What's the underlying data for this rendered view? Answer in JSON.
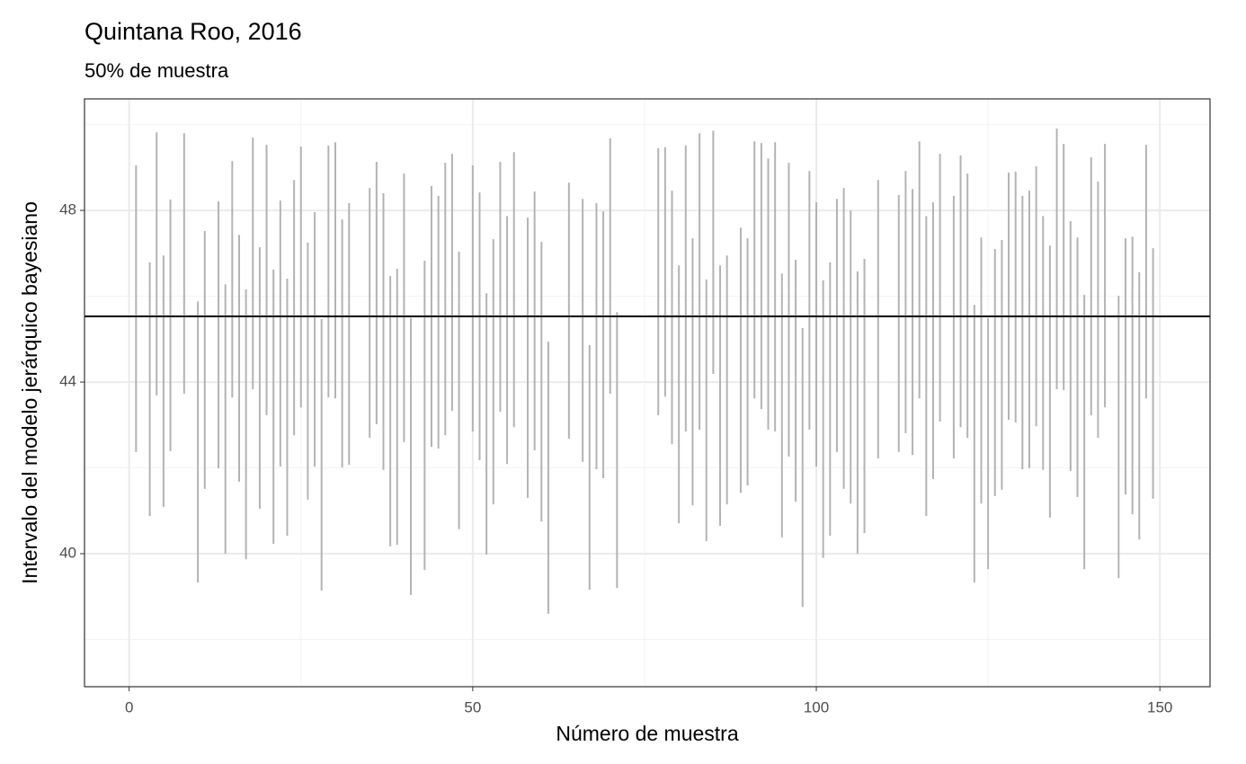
{
  "chart_data": {
    "type": "linerange",
    "title": "Quintana Roo, 2016",
    "subtitle": "50% de muestra",
    "x_label": "Número de muestra",
    "y_label": "Intervalo del modelo jerárquico bayesiano",
    "color": "#b3b3b3",
    "reference_line": 45.53,
    "reference_color": "#000000",
    "xlim": [
      -6.5,
      157.3
    ],
    "ylim": [
      36.9,
      50.6
    ],
    "xticks": [
      0,
      50,
      100,
      150
    ],
    "yticks": [
      40,
      44,
      48
    ],
    "x_minor_grid": [
      25,
      75,
      125
    ],
    "y_minor_grid": [
      38,
      42,
      46,
      50
    ],
    "grid": true,
    "x": [
      1,
      3,
      4,
      5,
      6,
      8,
      10,
      11,
      13,
      14,
      15,
      16,
      17,
      18,
      19,
      20,
      21,
      22,
      23,
      24,
      25,
      26,
      27,
      28,
      29,
      30,
      31,
      32,
      35,
      36,
      37,
      38,
      39,
      40,
      41,
      43,
      44,
      45,
      46,
      47,
      48,
      50,
      51,
      52,
      53,
      54,
      55,
      56,
      58,
      59,
      60,
      61,
      64,
      66,
      67,
      68,
      69,
      70,
      71,
      77,
      78,
      79,
      80,
      81,
      82,
      83,
      84,
      85,
      86,
      87,
      89,
      90,
      91,
      92,
      93,
      94,
      95,
      96,
      97,
      98,
      99,
      100,
      101,
      102,
      103,
      104,
      105,
      106,
      107,
      109,
      112,
      113,
      114,
      115,
      116,
      117,
      118,
      120,
      121,
      122,
      123,
      124,
      125,
      126,
      127,
      128,
      129,
      130,
      131,
      132,
      133,
      134,
      135,
      136,
      137,
      138,
      139,
      140,
      141,
      142,
      144,
      145,
      146,
      147,
      148,
      149
    ],
    "upper": [
      49.05,
      46.79,
      49.82,
      46.95,
      48.25,
      49.8,
      45.88,
      47.52,
      48.21,
      46.28,
      49.15,
      47.43,
      46.16,
      49.7,
      47.14,
      49.53,
      46.62,
      48.23,
      46.41,
      48.71,
      49.49,
      47.25,
      47.96,
      45.47,
      49.51,
      49.59,
      47.79,
      48.17,
      48.52,
      49.13,
      48.4,
      46.47,
      46.64,
      48.86,
      45.49,
      46.83,
      48.57,
      48.34,
      49.11,
      49.32,
      47.04,
      49.05,
      48.42,
      46.07,
      47.33,
      49.13,
      47.87,
      49.36,
      47.83,
      48.44,
      47.27,
      44.94,
      48.65,
      48.27,
      44.86,
      48.17,
      47.98,
      49.68,
      45.63,
      49.45,
      49.47,
      48.46,
      46.72,
      49.51,
      47.35,
      49.8,
      46.39,
      49.86,
      46.72,
      46.95,
      47.6,
      47.35,
      49.61,
      49.57,
      49.21,
      49.59,
      46.53,
      49.11,
      46.85,
      45.26,
      48.92,
      48.19,
      46.37,
      46.79,
      48.27,
      48.52,
      48.0,
      46.58,
      46.87,
      48.71,
      48.36,
      48.92,
      48.5,
      49.61,
      47.87,
      48.19,
      49.32,
      48.34,
      49.28,
      48.86,
      45.8,
      47.37,
      45.49,
      47.1,
      47.31,
      48.88,
      48.9,
      48.34,
      48.46,
      49.03,
      47.87,
      47.18,
      49.91,
      49.55,
      47.75,
      47.37,
      46.03,
      49.24,
      48.67,
      49.55,
      46.01,
      47.35,
      47.39,
      46.56,
      49.53,
      47.12
    ],
    "lower": [
      42.37,
      40.88,
      43.69,
      41.09,
      42.39,
      43.73,
      39.33,
      41.51,
      41.99,
      40.0,
      43.64,
      41.68,
      39.87,
      43.83,
      41.05,
      43.23,
      40.23,
      42.03,
      40.42,
      42.76,
      43.41,
      41.26,
      42.03,
      39.14,
      43.64,
      43.62,
      42.01,
      42.07,
      42.7,
      43.02,
      41.95,
      40.17,
      40.21,
      42.6,
      39.04,
      39.62,
      42.49,
      42.45,
      42.76,
      43.33,
      40.57,
      42.85,
      42.18,
      39.98,
      41.15,
      43.31,
      42.09,
      42.95,
      41.3,
      42.41,
      40.75,
      38.6,
      42.68,
      42.14,
      39.16,
      41.97,
      41.76,
      43.73,
      39.2,
      43.23,
      43.66,
      42.55,
      40.71,
      42.85,
      41.13,
      42.89,
      40.29,
      44.19,
      40.65,
      41.15,
      41.42,
      41.59,
      43.62,
      43.37,
      42.89,
      42.85,
      40.38,
      42.26,
      41.21,
      38.76,
      42.89,
      42.03,
      39.9,
      40.42,
      42.37,
      41.51,
      41.17,
      40.0,
      40.48,
      42.22,
      42.37,
      42.81,
      42.3,
      43.62,
      40.88,
      41.74,
      43.08,
      42.22,
      42.95,
      42.7,
      39.33,
      41.17,
      39.64,
      41.34,
      41.49,
      43.12,
      43.06,
      41.97,
      41.99,
      42.97,
      41.95,
      40.84,
      43.83,
      43.81,
      41.93,
      41.32,
      39.64,
      43.23,
      42.7,
      43.41,
      39.43,
      41.38,
      40.92,
      40.33,
      43.62,
      41.28
    ]
  }
}
